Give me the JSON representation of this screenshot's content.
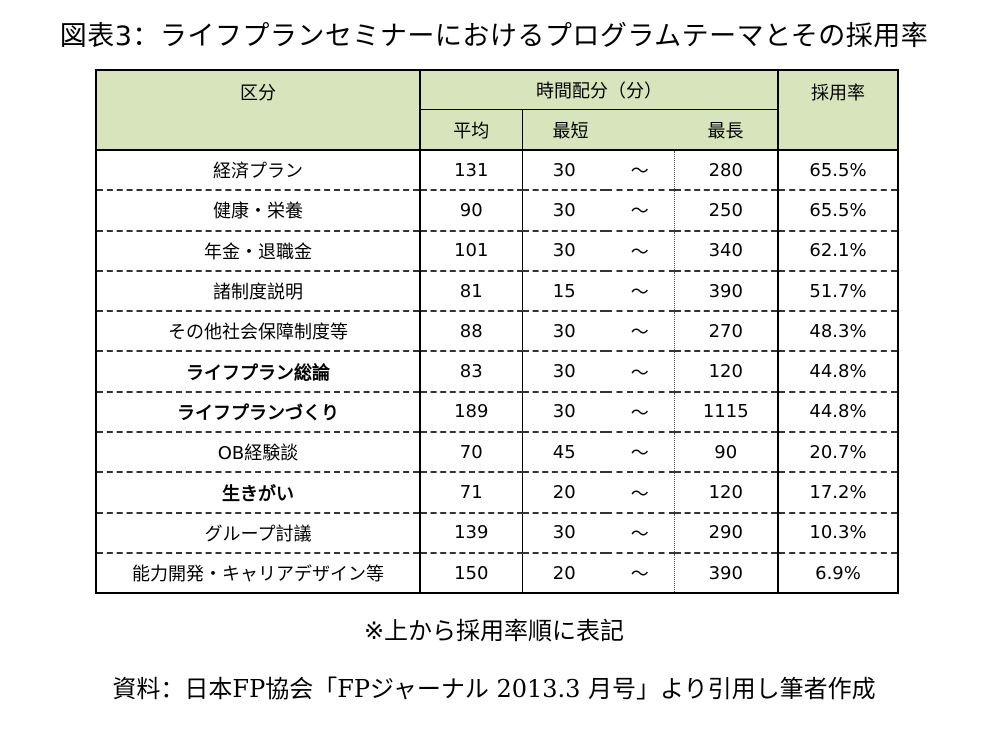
{
  "title": "図表3：ライフプランセミナーにおけるプログラムテーマとその採用率",
  "table": {
    "headers": {
      "category": "区分",
      "time_group": "時間配分（分）",
      "rate": "採用率",
      "avg": "平均",
      "min": "最短",
      "max": "最長"
    },
    "rows": [
      {
        "category": "経済プラン",
        "avg": "131",
        "min": "30",
        "tilde": "～",
        "max": "280",
        "rate": "65.5%",
        "bold": false
      },
      {
        "category": "健康・栄養",
        "avg": "90",
        "min": "30",
        "tilde": "～",
        "max": "250",
        "rate": "65.5%",
        "bold": false
      },
      {
        "category": "年金・退職金",
        "avg": "101",
        "min": "30",
        "tilde": "～",
        "max": "340",
        "rate": "62.1%",
        "bold": false
      },
      {
        "category": "諸制度説明",
        "avg": "81",
        "min": "15",
        "tilde": "～",
        "max": "390",
        "rate": "51.7%",
        "bold": false
      },
      {
        "category": "その他社会保障制度等",
        "avg": "88",
        "min": "30",
        "tilde": "～",
        "max": "270",
        "rate": "48.3%",
        "bold": false
      },
      {
        "category": "ライフプラン総論",
        "avg": "83",
        "min": "30",
        "tilde": "～",
        "max": "120",
        "rate": "44.8%",
        "bold": true
      },
      {
        "category": "ライフプランづくり",
        "avg": "189",
        "min": "30",
        "tilde": "～",
        "max": "1115",
        "rate": "44.8%",
        "bold": true
      },
      {
        "category": "OB経験談",
        "avg": "70",
        "min": "45",
        "tilde": "～",
        "max": "90",
        "rate": "20.7%",
        "bold": false
      },
      {
        "category": "生きがい",
        "avg": "71",
        "min": "20",
        "tilde": "～",
        "max": "120",
        "rate": "17.2%",
        "bold": true
      },
      {
        "category": "グループ討議",
        "avg": "139",
        "min": "30",
        "tilde": "～",
        "max": "290",
        "rate": "10.3%",
        "bold": false
      },
      {
        "category": "能力開発・キャリアデザイン等",
        "avg": "150",
        "min": "20",
        "tilde": "～",
        "max": "390",
        "rate": "6.9%",
        "bold": false
      }
    ]
  },
  "note": "※上から採用率順に表記",
  "source": "資料：日本FP協会「FPジャーナル 2013.3 月号」より引用し筆者作成",
  "colors": {
    "header_bg": "#d8e4bc"
  }
}
